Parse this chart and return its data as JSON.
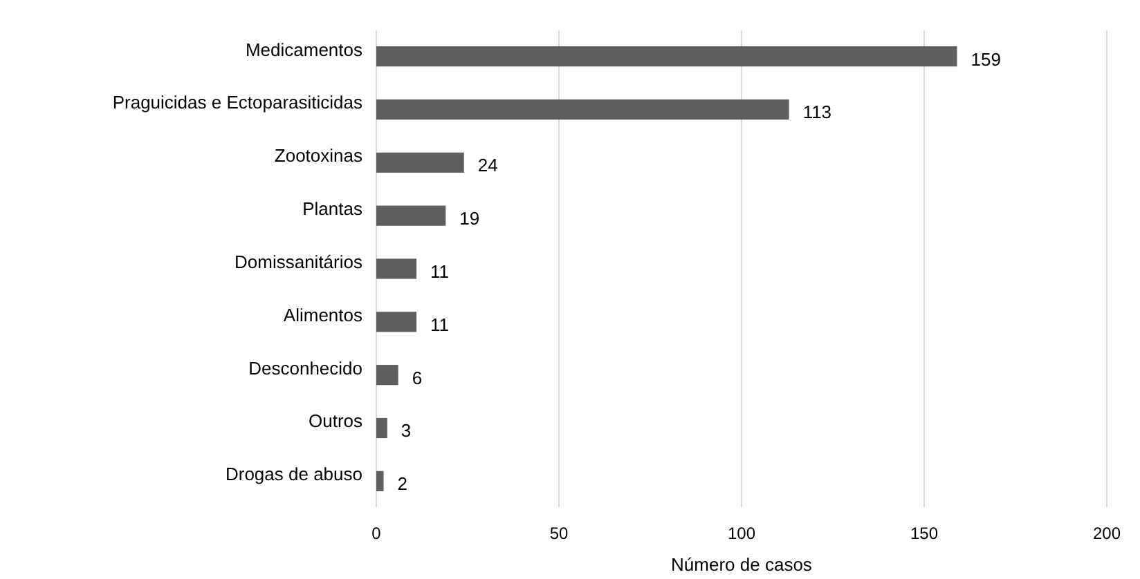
{
  "chart_data": {
    "type": "bar",
    "orientation": "horizontal",
    "xlabel": "Número de casos",
    "categories": [
      "Medicamentos",
      "Praguicidas e Ectoparasiticidas",
      "Zootoxinas",
      "Plantas",
      "Domissanitários",
      "Alimentos",
      "Desconhecido",
      "Outros",
      "Drogas de abuso"
    ],
    "values": [
      159,
      113,
      24,
      19,
      11,
      11,
      6,
      3,
      2
    ],
    "color": "#5f5f5f",
    "xlim": [
      0,
      200
    ],
    "xticks": [
      0,
      50,
      100,
      150,
      200
    ],
    "grid": "x",
    "data_labels": true
  }
}
